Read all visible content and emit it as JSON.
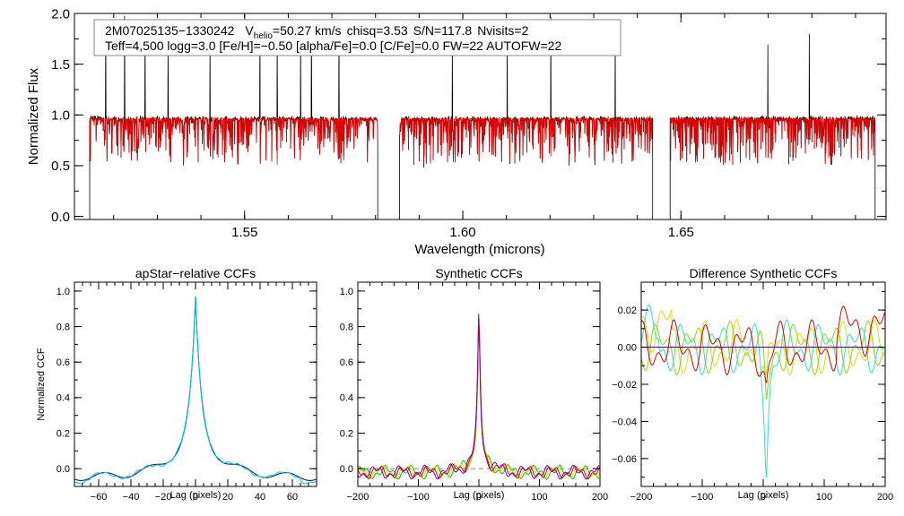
{
  "chart_data": [
    {
      "type": "line",
      "id": "spectrum",
      "xlabel": "Wavelength (microns)",
      "ylabel": "Normalized Flux",
      "xlim": [
        1.511,
        1.697
      ],
      "ylim": [
        -0.03,
        2.0
      ],
      "x_ticks": [
        1.55,
        1.6,
        1.65
      ],
      "x_tick_labels": [
        "1.55",
        "1.60",
        "1.65"
      ],
      "y_ticks": [
        0.0,
        0.5,
        1.0,
        1.5,
        2.0
      ],
      "y_tick_labels": [
        "0.0",
        "0.5",
        "1.0",
        "1.5",
        "2.0"
      ],
      "chips": [
        [
          1.5145,
          1.5805
        ],
        [
          1.5855,
          1.6435
        ],
        [
          1.6475,
          1.6945
        ]
      ],
      "observed_spikes": [
        1.5182,
        1.5225,
        1.5272,
        1.5325,
        1.5421,
        1.5535,
        1.5575,
        1.5628,
        1.5653,
        1.5716,
        1.5976,
        1.6102,
        1.6202,
        1.6349,
        1.6699,
        1.6794
      ],
      "annotation": {
        "object": "2M07025135−1330242",
        "vhelio_prefix": "V",
        "vhelio_sub": "helio",
        "vhelio_value": "=50.27 km/s",
        "chisq": "chisq=3.53",
        "snr": "S/N=117.8",
        "nvisits": "Nvisits=2",
        "line2": "Teff=4,500 logg=3.0 [Fe/H]=−0.50 [alpha/Fe]=0.0 [C/Fe]=0.0 FW=22 AUTOFW=22"
      },
      "series": [
        {
          "name": "observed",
          "color": "#000000"
        },
        {
          "name": "model",
          "color": "#e00000"
        }
      ]
    },
    {
      "type": "line",
      "id": "apstar-ccf",
      "title": "apStar−relative CCFs",
      "xlabel": "Lag (pixels)",
      "ylabel": "Normalized CCF",
      "xlim": [
        -75,
        75
      ],
      "ylim": [
        -0.1,
        1.05
      ],
      "x_ticks": [
        -60,
        -40,
        -20,
        0,
        20,
        40,
        60
      ],
      "x_tick_labels": [
        "−60",
        "−40",
        "−20",
        "0",
        "20",
        "40",
        "60"
      ],
      "y_ticks": [
        0.0,
        0.2,
        0.4,
        0.6,
        0.8,
        1.0
      ],
      "y_tick_labels": [
        "0.0",
        "0.2",
        "0.4",
        "0.6",
        "0.8",
        "1.0"
      ],
      "series": [
        {
          "name": "visit 1",
          "color": "#1a1a8c"
        },
        {
          "name": "visit 2",
          "color": "#00cccc"
        }
      ]
    },
    {
      "type": "line",
      "id": "synthetic-ccf",
      "title": "Synthetic CCFs",
      "xlabel": "Lag (pixels)",
      "xlim": [
        -200,
        200
      ],
      "ylim": [
        -0.1,
        1.05
      ],
      "x_ticks": [
        -200,
        -100,
        0,
        100,
        200
      ],
      "x_tick_labels": [
        "−200",
        "−100",
        "0",
        "100",
        "200"
      ],
      "y_ticks": [
        0.0,
        0.2,
        0.4,
        0.6,
        0.8,
        1.0
      ],
      "y_tick_labels": [
        "0.0",
        "0.2",
        "0.4",
        "0.6",
        "0.8",
        "1.0"
      ],
      "series": [
        {
          "name": "green",
          "color": "#00c000"
        },
        {
          "name": "yellow",
          "color": "#dddd00"
        },
        {
          "name": "red",
          "color": "#e00000"
        },
        {
          "name": "purple",
          "color": "#8000a0"
        }
      ]
    },
    {
      "type": "line",
      "id": "difference-ccf",
      "title": "Difference Synthetic CCFs",
      "xlabel": "Lag (pixels)",
      "xlim": [
        -200,
        200
      ],
      "ylim": [
        -0.075,
        0.035
      ],
      "x_ticks": [
        -200,
        -100,
        0,
        100,
        200
      ],
      "x_tick_labels": [
        "−200",
        "−100",
        "0",
        "100",
        "200"
      ],
      "y_ticks": [
        -0.06,
        -0.04,
        -0.02,
        0.0,
        0.02
      ],
      "y_tick_labels": [
        "−0.06",
        "−0.04",
        "−0.02",
        "0.00",
        "0.02"
      ],
      "series": [
        {
          "name": "yellow",
          "color": "#dddd00"
        },
        {
          "name": "green",
          "color": "#80e000"
        },
        {
          "name": "cyan",
          "color": "#30e0d0"
        },
        {
          "name": "red",
          "color": "#e00000"
        },
        {
          "name": "zero line",
          "color": "#6000a0"
        }
      ]
    }
  ]
}
